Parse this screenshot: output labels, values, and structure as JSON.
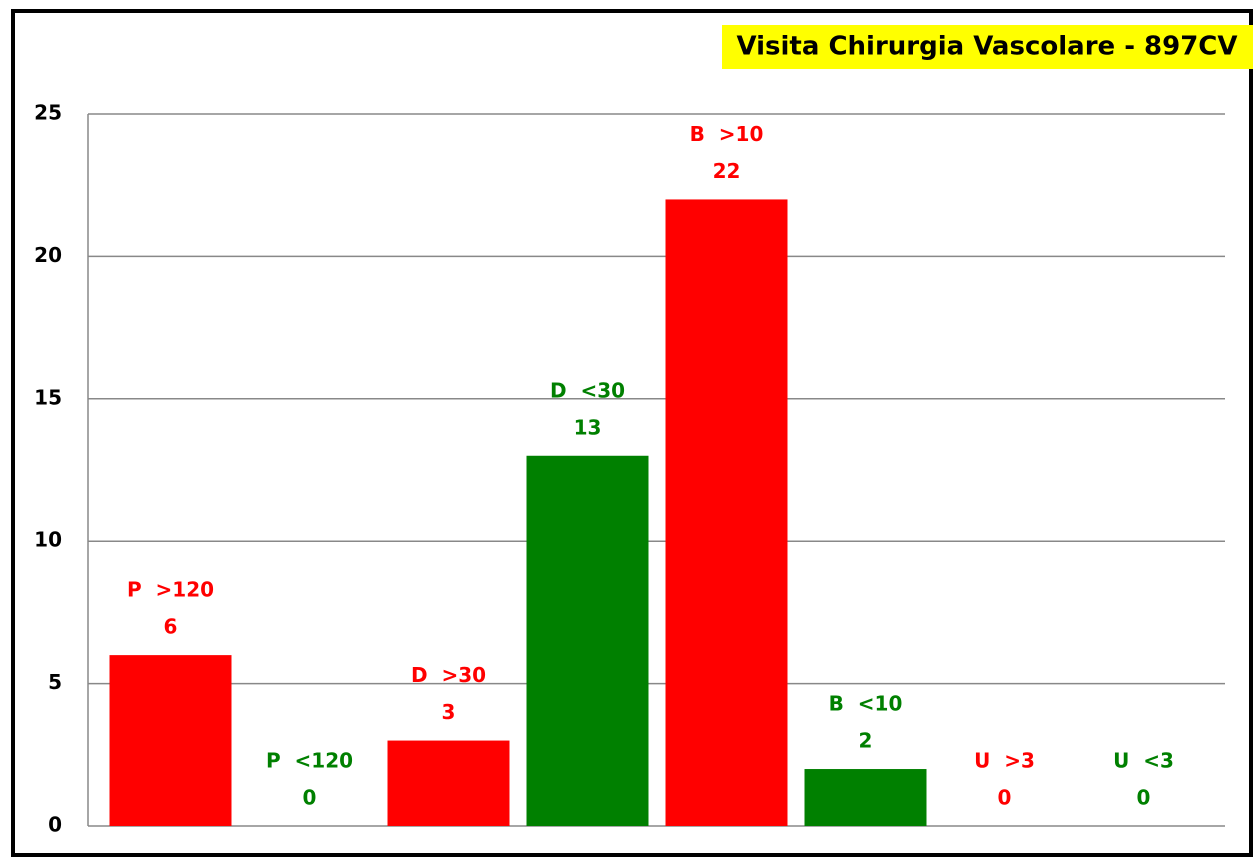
{
  "chart_data": {
    "type": "bar",
    "title": "Visita Chirurgia Vascolare - 897CV",
    "categories": [
      "P  >120",
      "P  <120",
      "D  >30",
      "D  <30",
      "B  >10",
      "B  <10",
      "U  >3",
      "U  <3"
    ],
    "values": [
      6,
      0,
      3,
      13,
      22,
      2,
      0,
      0
    ],
    "colors": [
      "#ff0000",
      "#008000",
      "#ff0000",
      "#008000",
      "#ff0000",
      "#008000",
      "#ff0000",
      "#008000"
    ],
    "ylim": [
      0,
      25
    ],
    "yticks": [
      0,
      5,
      10,
      15,
      20,
      25
    ],
    "grid": true
  }
}
